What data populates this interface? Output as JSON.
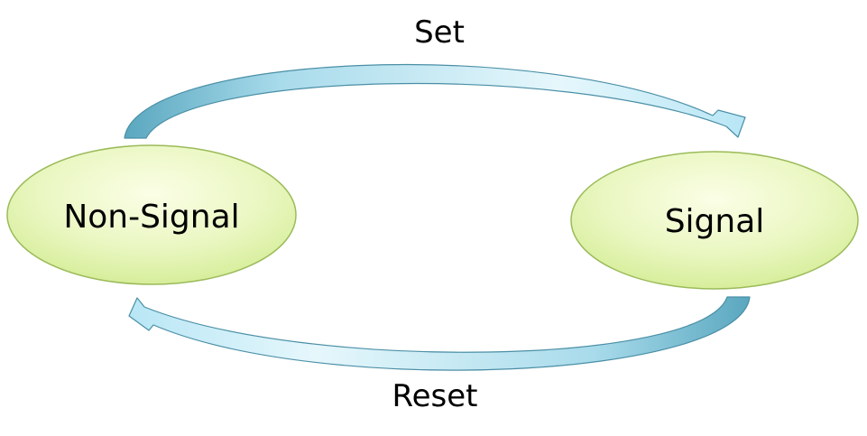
{
  "diagram": {
    "nodes": [
      {
        "id": "non-signal",
        "label": "Non-Signal"
      },
      {
        "id": "signal",
        "label": "Signal"
      }
    ],
    "edges": [
      {
        "from": "non-signal",
        "to": "signal",
        "label": "Set"
      },
      {
        "from": "signal",
        "to": "non-signal",
        "label": "Reset"
      }
    ]
  },
  "colors": {
    "node_fill_light": "#fbfee6",
    "node_fill_dark": "#d3ec93",
    "node_stroke": "#9bbb59",
    "arrow_fill_light": "#ffffff",
    "arrow_fill_mid": "#b8e6f5",
    "arrow_fill_dark": "#5aa7bf",
    "arrow_stroke": "#4a8fa6"
  }
}
